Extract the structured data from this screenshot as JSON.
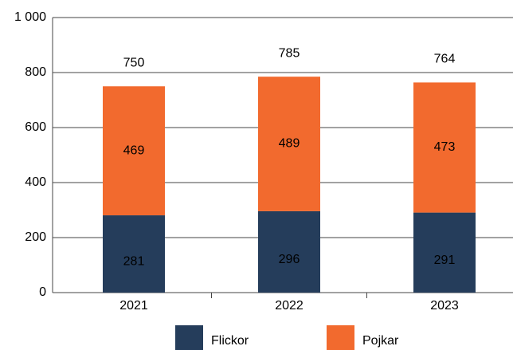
{
  "chart_data": {
    "type": "stacked_bar",
    "categories": [
      "2021",
      "2022",
      "2023"
    ],
    "series": [
      {
        "name": "Flickor",
        "color": "#253d5b",
        "values": [
          281,
          296,
          291
        ]
      },
      {
        "name": "Pojkar",
        "color": "#f26a2e",
        "values": [
          469,
          489,
          473
        ]
      }
    ],
    "totals": [
      750,
      785,
      764
    ],
    "ylim": [
      0,
      1000
    ],
    "yticks": [
      0,
      200,
      400,
      600,
      800,
      {
        "value": 1000,
        "label": "1 000"
      }
    ],
    "grid": true
  }
}
